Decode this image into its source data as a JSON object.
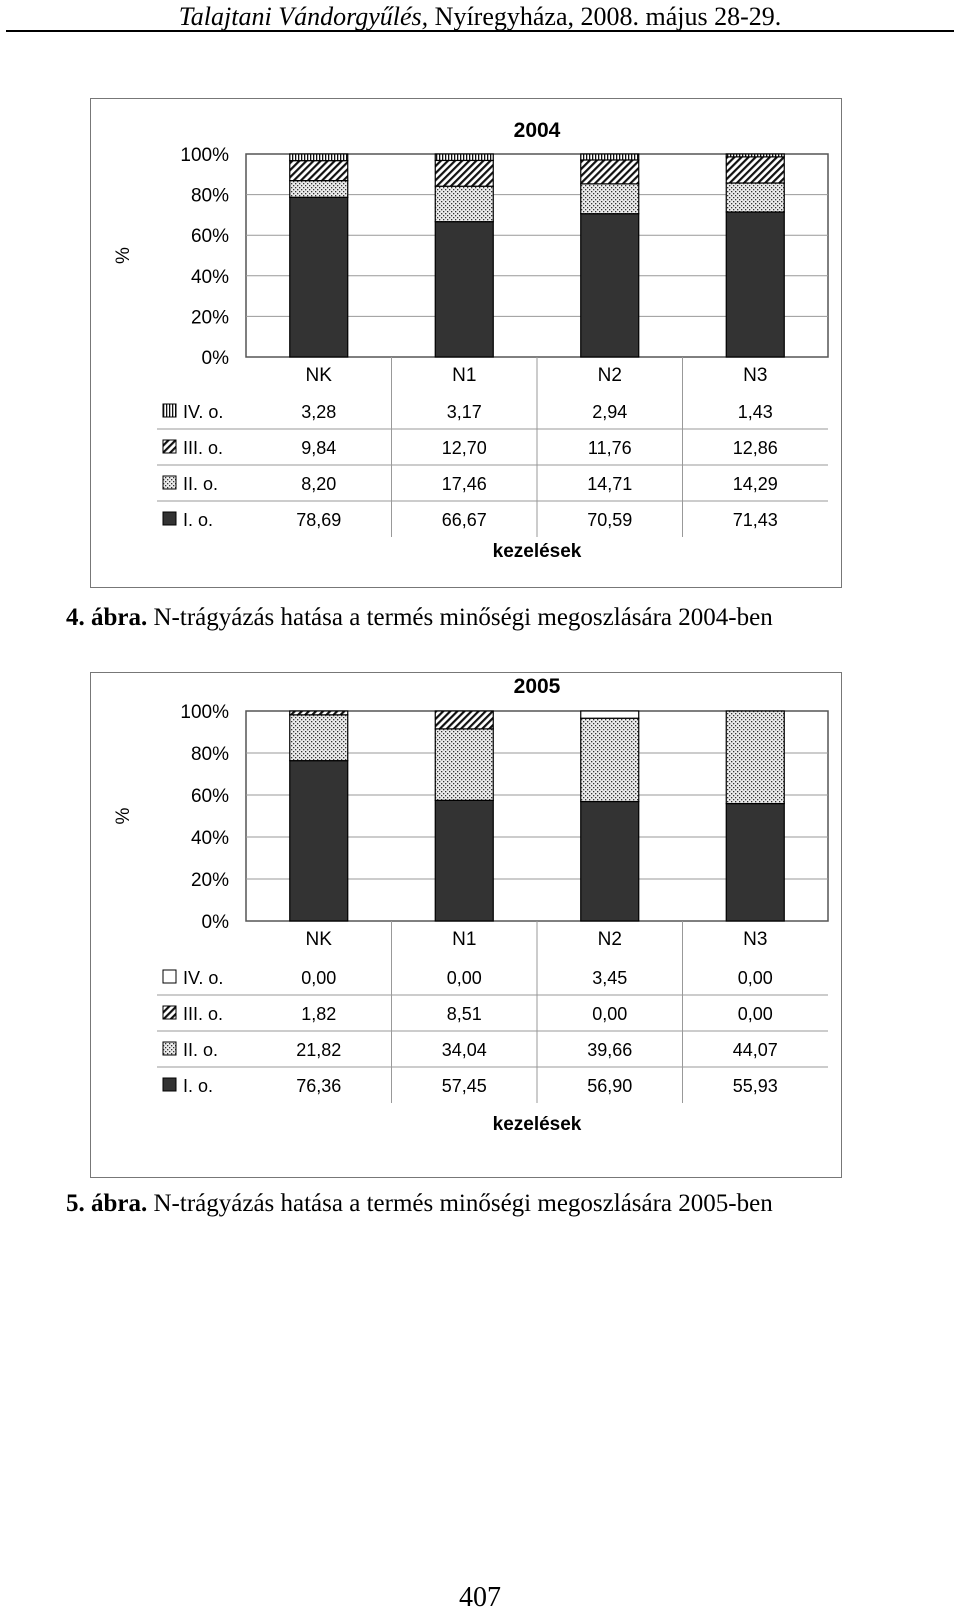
{
  "header": {
    "italic_part": "Talajtani Vándorgyűlés,",
    "normal_part": " Nyíregyháza, 2008. május 28-29."
  },
  "colors": {
    "I": "#333333",
    "II": "#ececec",
    "III": "#ffffff",
    "IV": "#ffffff",
    "grid": "#999999",
    "frame": "#777777"
  },
  "chart_data": [
    {
      "type": "bar",
      "stacked": true,
      "percent": true,
      "title": "2004",
      "ylabel": "%",
      "xlabel": "kezelések",
      "ylim": [
        0,
        100
      ],
      "yticks": [
        "0%",
        "20%",
        "40%",
        "60%",
        "80%",
        "100%"
      ],
      "categories": [
        "NK",
        "N1",
        "N2",
        "N3"
      ],
      "series": [
        {
          "key": "IV",
          "name": "IV. o.",
          "pattern": "vlines",
          "values": [
            3.28,
            3.17,
            2.94,
            1.43
          ],
          "labels": [
            "3,28",
            "3,17",
            "2,94",
            "1,43"
          ]
        },
        {
          "key": "III",
          "name": "III. o.",
          "pattern": "diag",
          "values": [
            9.84,
            12.7,
            11.76,
            12.86
          ],
          "labels": [
            "9,84",
            "12,70",
            "11,76",
            "12,86"
          ]
        },
        {
          "key": "II",
          "name": "II. o.",
          "pattern": "dots",
          "values": [
            8.2,
            17.46,
            14.71,
            14.29
          ],
          "labels": [
            "8,20",
            "17,46",
            "14,71",
            "14,29"
          ]
        },
        {
          "key": "I",
          "name": "I. o.",
          "pattern": "solid",
          "values": [
            78.69,
            66.67,
            70.59,
            71.43
          ],
          "labels": [
            "78,69",
            "66,67",
            "70,59",
            "71,43"
          ]
        }
      ]
    },
    {
      "type": "bar",
      "stacked": true,
      "percent": true,
      "title": "2005",
      "ylabel": "%",
      "xlabel": "kezelések",
      "ylim": [
        0,
        100
      ],
      "yticks": [
        "0%",
        "20%",
        "40%",
        "60%",
        "80%",
        "100%"
      ],
      "categories": [
        "NK",
        "N1",
        "N2",
        "N3"
      ],
      "series": [
        {
          "key": "IV",
          "name": "IV. o.",
          "pattern": "empty",
          "values": [
            0.0,
            0.0,
            3.45,
            0.0
          ],
          "labels": [
            "0,00",
            "0,00",
            "3,45",
            "0,00"
          ]
        },
        {
          "key": "III",
          "name": "III. o.",
          "pattern": "diag",
          "values": [
            1.82,
            8.51,
            0.0,
            0.0
          ],
          "labels": [
            "1,82",
            "8,51",
            "0,00",
            "0,00"
          ]
        },
        {
          "key": "II",
          "name": "II. o.",
          "pattern": "dots",
          "values": [
            21.82,
            34.04,
            39.66,
            44.07
          ],
          "labels": [
            "21,82",
            "34,04",
            "39,66",
            "44,07"
          ]
        },
        {
          "key": "I",
          "name": "I. o.",
          "pattern": "solid",
          "values": [
            76.36,
            57.45,
            56.9,
            55.93
          ],
          "labels": [
            "76,36",
            "57,45",
            "56,90",
            "55,93"
          ]
        }
      ]
    }
  ],
  "captions": [
    {
      "label": "4. ábra.",
      "text": " N-trágyázás hatása a termés minőségi megoszlására 2004-ben"
    },
    {
      "label": "5. ábra.",
      "text": " N-trágyázás hatása a termés minőségi megoszlására 2005-ben"
    }
  ],
  "page_number": "407"
}
